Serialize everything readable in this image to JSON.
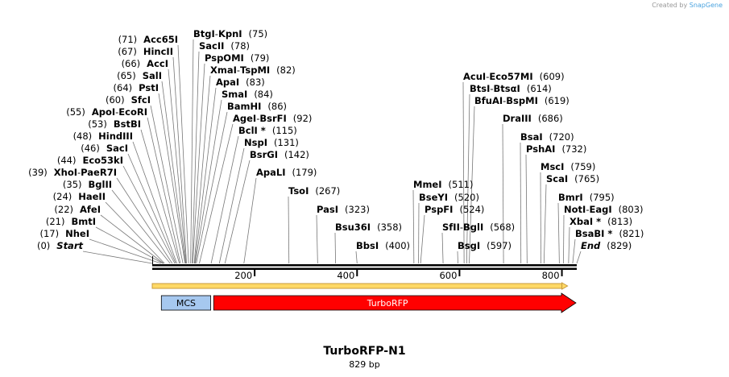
{
  "credit": {
    "prefix": "Created by",
    "brand": "SnapGene"
  },
  "plasmid": {
    "name": "TurboRFP-N1",
    "length_label": "829 bp",
    "length_bp": 829
  },
  "ticks": [
    {
      "bp": 200,
      "label": "200"
    },
    {
      "bp": 400,
      "label": "400"
    },
    {
      "bp": 600,
      "label": "600"
    },
    {
      "bp": 800,
      "label": "800"
    }
  ],
  "features": [
    {
      "name": "MCS",
      "start": 17,
      "end": 115,
      "color": "#a6c8ef",
      "arrow": false
    },
    {
      "name": "TurboRFP",
      "start": 120,
      "end": 829,
      "color": "#ff0000",
      "arrow": true
    }
  ],
  "orf": {
    "start": 0,
    "end": 800,
    "color": "#ffd966"
  },
  "sites": [
    {
      "pos": 0,
      "pos_label": "(0)",
      "names": [
        "Start"
      ],
      "italic": true
    },
    {
      "pos": 17,
      "pos_label": "(17)",
      "names": [
        "NheI"
      ]
    },
    {
      "pos": 21,
      "pos_label": "(21)",
      "names": [
        "BmtI"
      ]
    },
    {
      "pos": 22,
      "pos_label": "(22)",
      "names": [
        "AfeI"
      ]
    },
    {
      "pos": 24,
      "pos_label": "(24)",
      "names": [
        "HaeII"
      ]
    },
    {
      "pos": 35,
      "pos_label": "(35)",
      "names": [
        "BglII"
      ]
    },
    {
      "pos": 39,
      "pos_label": "(39)",
      "names": [
        "XhoI",
        "PaeR7I"
      ]
    },
    {
      "pos": 44,
      "pos_label": "(44)",
      "names": [
        "Eco53kI"
      ]
    },
    {
      "pos": 46,
      "pos_label": "(46)",
      "names": [
        "SacI"
      ]
    },
    {
      "pos": 48,
      "pos_label": "(48)",
      "names": [
        "HindIII"
      ]
    },
    {
      "pos": 53,
      "pos_label": "(53)",
      "names": [
        "BstBI"
      ]
    },
    {
      "pos": 55,
      "pos_label": "(55)",
      "names": [
        "ApoI",
        "EcoRI"
      ]
    },
    {
      "pos": 60,
      "pos_label": "(60)",
      "names": [
        "SfcI"
      ]
    },
    {
      "pos": 64,
      "pos_label": "(64)",
      "names": [
        "PstI"
      ]
    },
    {
      "pos": 65,
      "pos_label": "(65)",
      "names": [
        "SalI"
      ]
    },
    {
      "pos": 66,
      "pos_label": "(66)",
      "names": [
        "AccI"
      ]
    },
    {
      "pos": 67,
      "pos_label": "(67)",
      "names": [
        "HincII"
      ]
    },
    {
      "pos": 71,
      "pos_label": "(71)",
      "names": [
        "Acc65I"
      ]
    },
    {
      "pos": 75,
      "pos_label": "(75)",
      "names": [
        "BtgI",
        "KpnI"
      ]
    },
    {
      "pos": 78,
      "pos_label": "(78)",
      "names": [
        "SacII"
      ]
    },
    {
      "pos": 79,
      "pos_label": "(79)",
      "names": [
        "PspOMI"
      ]
    },
    {
      "pos": 82,
      "pos_label": "(82)",
      "names": [
        "XmaI",
        "TspMI"
      ]
    },
    {
      "pos": 83,
      "pos_label": "(83)",
      "names": [
        "ApaI"
      ]
    },
    {
      "pos": 84,
      "pos_label": "(84)",
      "names": [
        "SmaI"
      ]
    },
    {
      "pos": 86,
      "pos_label": "(86)",
      "names": [
        "BamHI"
      ]
    },
    {
      "pos": 92,
      "pos_label": "(92)",
      "names": [
        "AgeI",
        "BsrFI"
      ]
    },
    {
      "pos": 115,
      "pos_label": "(115)",
      "names": [
        "BclI *"
      ]
    },
    {
      "pos": 131,
      "pos_label": "(131)",
      "names": [
        "NspI"
      ]
    },
    {
      "pos": 142,
      "pos_label": "(142)",
      "names": [
        "BsrGI"
      ]
    },
    {
      "pos": 179,
      "pos_label": "(179)",
      "names": [
        "ApaLI"
      ]
    },
    {
      "pos": 267,
      "pos_label": "(267)",
      "names": [
        "TsoI"
      ]
    },
    {
      "pos": 323,
      "pos_label": "(323)",
      "names": [
        "PasI"
      ]
    },
    {
      "pos": 358,
      "pos_label": "(358)",
      "names": [
        "Bsu36I"
      ]
    },
    {
      "pos": 400,
      "pos_label": "(400)",
      "names": [
        "BbsI"
      ]
    },
    {
      "pos": 511,
      "pos_label": "(511)",
      "names": [
        "MmeI"
      ]
    },
    {
      "pos": 520,
      "pos_label": "(520)",
      "names": [
        "BseYI"
      ]
    },
    {
      "pos": 524,
      "pos_label": "(524)",
      "names": [
        "PspFI"
      ]
    },
    {
      "pos": 568,
      "pos_label": "(568)",
      "names": [
        "SfII",
        "BglI"
      ]
    },
    {
      "pos": 597,
      "pos_label": "(597)",
      "names": [
        "BsgI"
      ]
    },
    {
      "pos": 609,
      "pos_label": "(609)",
      "names": [
        "AcuI",
        "Eco57MI"
      ]
    },
    {
      "pos": 614,
      "pos_label": "(614)",
      "names": [
        "BtsI",
        "BtsαI"
      ]
    },
    {
      "pos": 619,
      "pos_label": "(619)",
      "names": [
        "BfuAI",
        "BspMI"
      ]
    },
    {
      "pos": 686,
      "pos_label": "(686)",
      "names": [
        "DraIII"
      ]
    },
    {
      "pos": 720,
      "pos_label": "(720)",
      "names": [
        "BsaI"
      ]
    },
    {
      "pos": 732,
      "pos_label": "(732)",
      "names": [
        "PshAI"
      ]
    },
    {
      "pos": 759,
      "pos_label": "(759)",
      "names": [
        "MscI"
      ]
    },
    {
      "pos": 765,
      "pos_label": "(765)",
      "names": [
        "ScaI"
      ]
    },
    {
      "pos": 795,
      "pos_label": "(795)",
      "names": [
        "BmrI"
      ]
    },
    {
      "pos": 803,
      "pos_label": "(803)",
      "names": [
        "NotI",
        "EagI"
      ]
    },
    {
      "pos": 813,
      "pos_label": "(813)",
      "names": [
        "XbaI *"
      ]
    },
    {
      "pos": 821,
      "pos_label": "(821)",
      "names": [
        "BsaBI *"
      ]
    },
    {
      "pos": 829,
      "pos_label": "(829)",
      "names": [
        "End"
      ],
      "italic": true
    }
  ]
}
